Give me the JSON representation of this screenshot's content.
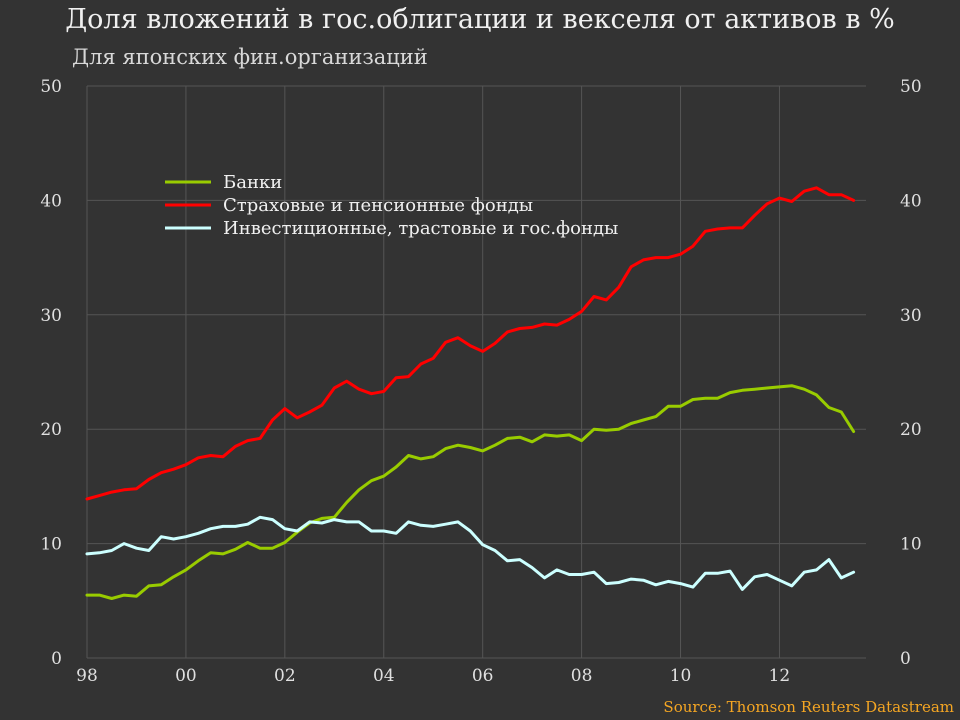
{
  "title": "Доля вложений в гос.облигации и векселя от активов в %",
  "subtitle": "Для японских фин.организаций",
  "source": "Source: Thomson Reuters Datastream",
  "colors": {
    "background": "#333333",
    "grid": "#555555",
    "banks": "#99cc00",
    "insurance": "#ff0000",
    "investment": "#ccffff"
  },
  "chart_data": {
    "type": "line",
    "title": "Доля вложений в гос.облигации и векселя от активов в %",
    "subtitle": "Для японских фин.организаций",
    "xlabel": "",
    "ylabel": "",
    "ylim": [
      0,
      50
    ],
    "yticks": [
      0,
      10,
      20,
      30,
      40,
      50
    ],
    "xlim": [
      1998.0,
      2013.75
    ],
    "xticks": [
      {
        "value": 1998,
        "label": "98"
      },
      {
        "value": 2000,
        "label": "00"
      },
      {
        "value": 2002,
        "label": "02"
      },
      {
        "value": 2004,
        "label": "04"
      },
      {
        "value": 2006,
        "label": "06"
      },
      {
        "value": 2008,
        "label": "08"
      },
      {
        "value": 2010,
        "label": "10"
      },
      {
        "value": 2012,
        "label": "12"
      }
    ],
    "grid": true,
    "dual_y_axis": true,
    "legend_position": "upper-left",
    "x_start": 1998.0,
    "x_step": 0.25,
    "series": [
      {
        "name": "Банки",
        "color": "#99cc00",
        "values": [
          5.5,
          5.5,
          5.2,
          5.5,
          5.4,
          6.3,
          6.4,
          7.1,
          7.7,
          8.5,
          9.2,
          9.1,
          9.5,
          10.1,
          9.6,
          9.6,
          10.1,
          11.0,
          11.8,
          12.2,
          12.3,
          13.6,
          14.7,
          15.5,
          15.9,
          16.7,
          17.7,
          17.4,
          17.6,
          18.3,
          18.6,
          18.4,
          18.1,
          18.6,
          19.2,
          19.3,
          18.9,
          19.5,
          19.4,
          19.5,
          19.0,
          20.0,
          19.9,
          20.0,
          20.5,
          20.8,
          21.1,
          22.0,
          22.0,
          22.6,
          22.7,
          22.7,
          23.2,
          23.4,
          23.5,
          23.6,
          23.7,
          23.8,
          23.5,
          23.0,
          21.9,
          21.5,
          19.8
        ]
      },
      {
        "name": "Страховые и пенсионные фонды",
        "color": "#ff0000",
        "values": [
          13.9,
          14.2,
          14.5,
          14.7,
          14.8,
          15.6,
          16.2,
          16.5,
          16.9,
          17.5,
          17.7,
          17.6,
          18.5,
          19.0,
          19.2,
          20.8,
          21.8,
          21.0,
          21.5,
          22.1,
          23.6,
          24.2,
          23.5,
          23.1,
          23.3,
          24.5,
          24.6,
          25.7,
          26.2,
          27.6,
          28.0,
          27.3,
          26.8,
          27.5,
          28.5,
          28.8,
          28.9,
          29.2,
          29.1,
          29.6,
          30.3,
          31.6,
          31.3,
          32.4,
          34.2,
          34.8,
          35.0,
          35.0,
          35.3,
          36.0,
          37.3,
          37.5,
          37.6,
          37.6,
          38.7,
          39.7,
          40.2,
          39.9,
          40.8,
          41.1,
          40.5,
          40.5,
          40.0
        ]
      },
      {
        "name": "Инвестиционные, трастовые и гос.фонды",
        "color": "#ccffff",
        "values": [
          9.1,
          9.2,
          9.4,
          10.0,
          9.6,
          9.4,
          10.6,
          10.4,
          10.6,
          10.9,
          11.3,
          11.5,
          11.5,
          11.7,
          12.3,
          12.1,
          11.3,
          11.1,
          11.9,
          11.8,
          12.1,
          11.9,
          11.9,
          11.1,
          11.1,
          10.9,
          11.9,
          11.6,
          11.5,
          11.7,
          11.9,
          11.1,
          9.9,
          9.4,
          8.5,
          8.6,
          7.9,
          7.0,
          7.7,
          7.3,
          7.3,
          7.5,
          6.5,
          6.6,
          6.9,
          6.8,
          6.4,
          6.7,
          6.5,
          6.2,
          7.4,
          7.4,
          7.6,
          6.0,
          7.1,
          7.3,
          6.8,
          6.3,
          7.5,
          7.7,
          8.6,
          7.0,
          7.5
        ]
      }
    ]
  }
}
